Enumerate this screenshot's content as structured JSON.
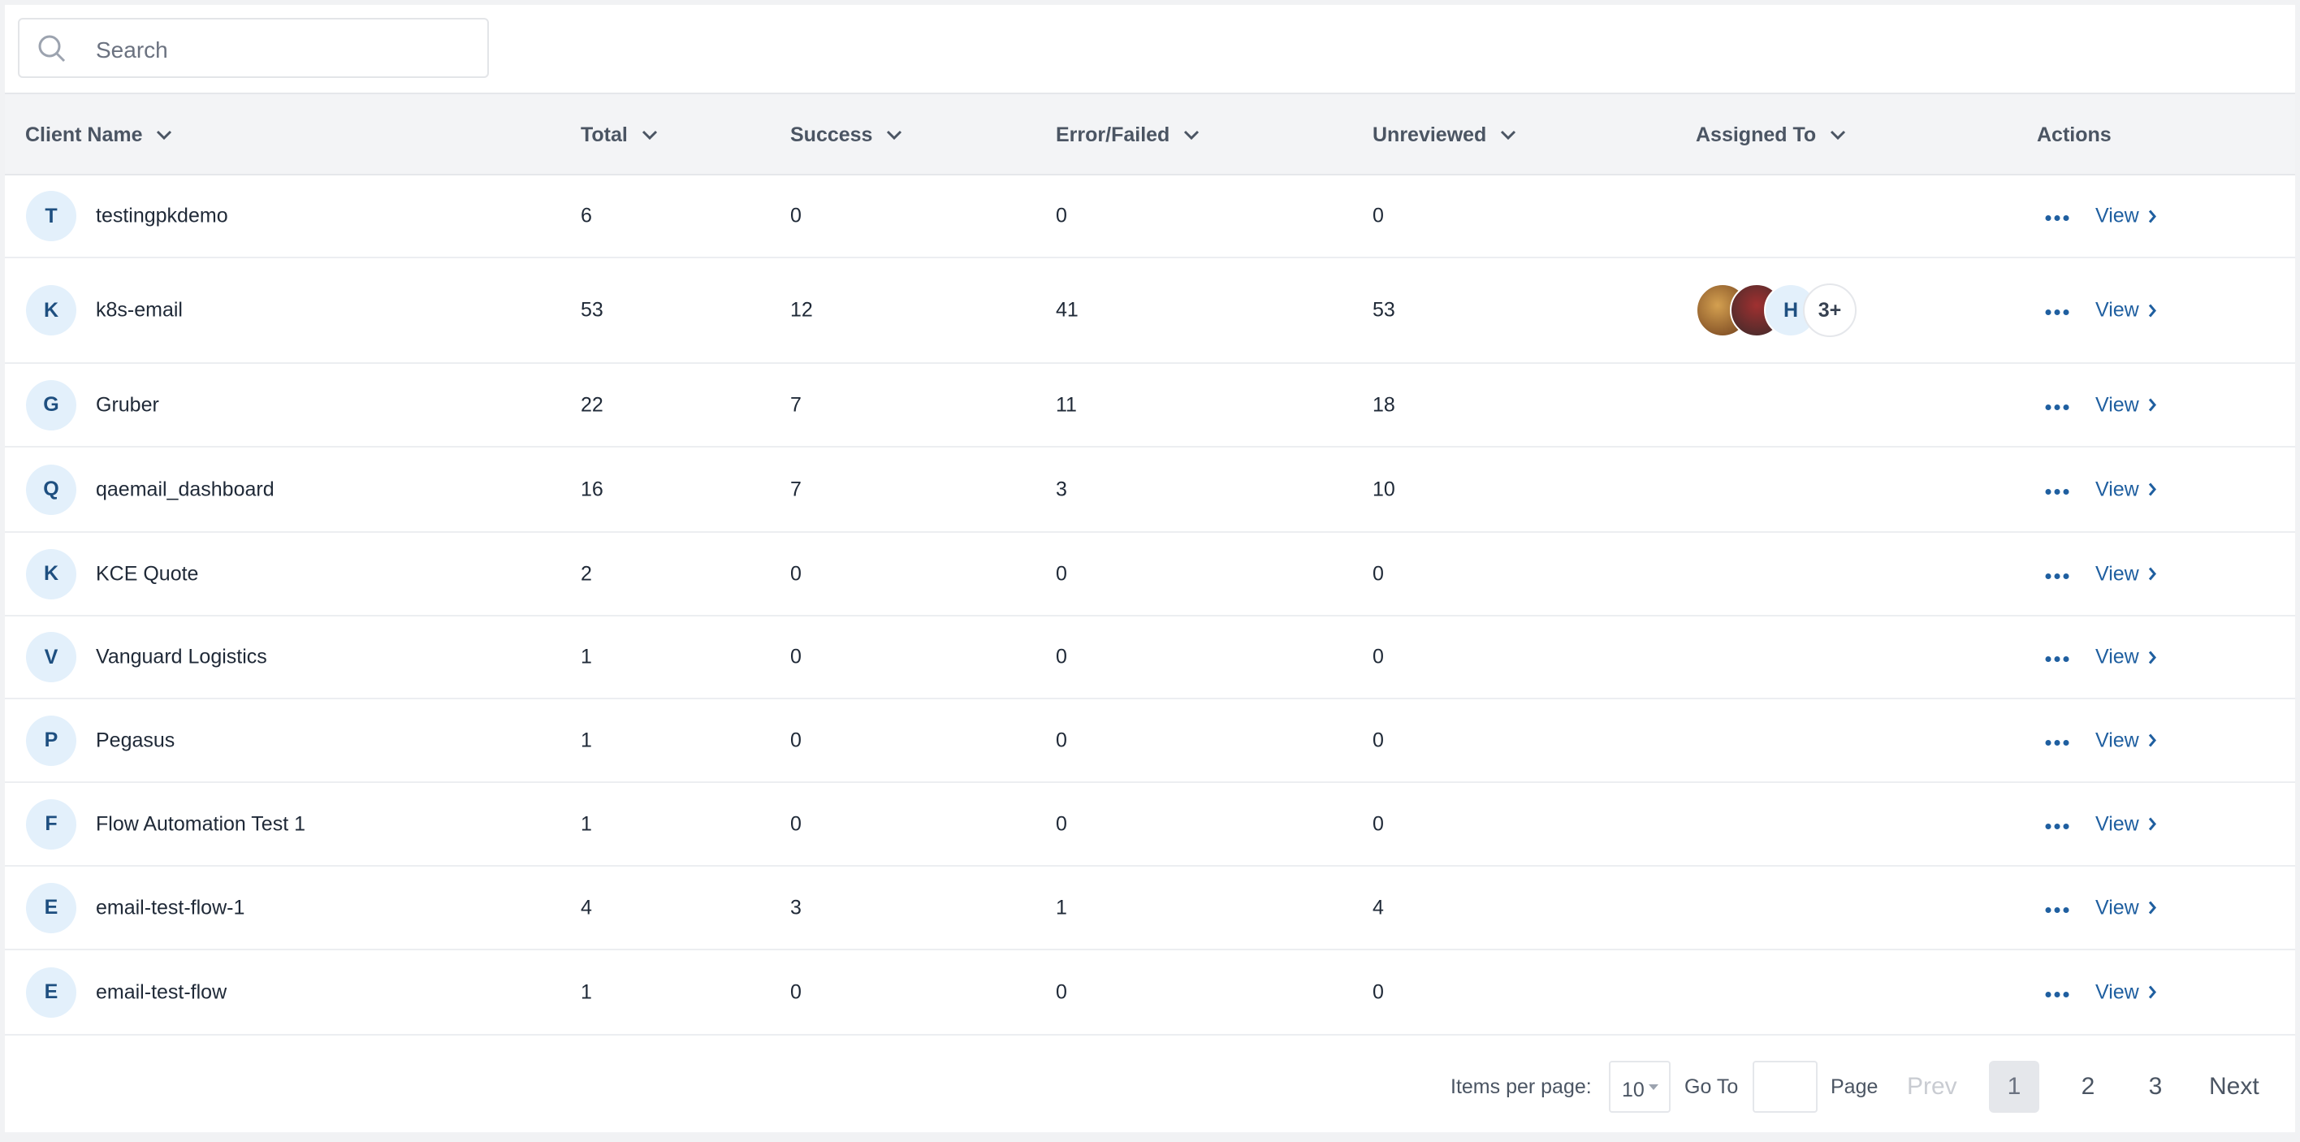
{
  "header": {
    "search_placeholder": "Search"
  },
  "table": {
    "columns": [
      "Client Name",
      "Total",
      "Success",
      "Error/Failed",
      "Unreviewed",
      "Assigned To",
      "Actions"
    ],
    "rows": [
      {
        "initial": "T",
        "name": "testingpkdemo",
        "total": 6,
        "success": 0,
        "error": 0,
        "unreviewed": 0,
        "action": "View"
      },
      {
        "initial": "K",
        "name": "k8s-email",
        "total": 53,
        "success": 12,
        "error": 41,
        "unreviewed": 53,
        "assigned": {
          "initial": "H",
          "more": "3+"
        },
        "action": "View"
      },
      {
        "initial": "G",
        "name": "Gruber",
        "total": 22,
        "success": 7,
        "error": 11,
        "unreviewed": 18,
        "action": "View"
      },
      {
        "initial": "Q",
        "name": "qaemail_dashboard",
        "total": 16,
        "success": 7,
        "error": 3,
        "unreviewed": 10,
        "action": "View"
      },
      {
        "initial": "K",
        "name": "KCE Quote",
        "total": 2,
        "success": 0,
        "error": 0,
        "unreviewed": 0,
        "action": "View"
      },
      {
        "initial": "V",
        "name": "Vanguard Logistics",
        "total": 1,
        "success": 0,
        "error": 0,
        "unreviewed": 0,
        "action": "View"
      },
      {
        "initial": "P",
        "name": "Pegasus",
        "total": 1,
        "success": 0,
        "error": 0,
        "unreviewed": 0,
        "action": "View"
      },
      {
        "initial": "F",
        "name": "Flow Automation Test 1",
        "total": 1,
        "success": 0,
        "error": 0,
        "unreviewed": 0,
        "action": "View"
      },
      {
        "initial": "E",
        "name": "email-test-flow-1",
        "total": 4,
        "success": 3,
        "error": 1,
        "unreviewed": 4,
        "action": "View"
      },
      {
        "initial": "E",
        "name": "email-test-flow",
        "total": 1,
        "success": 0,
        "error": 0,
        "unreviewed": 0,
        "action": "View"
      }
    ]
  },
  "pagination": {
    "items_label": "Items per page:",
    "items_value": "10",
    "goto_label": "Go To",
    "page_label": "Page",
    "prev": "Prev",
    "pages": [
      "1",
      "2",
      "3"
    ],
    "next": "Next"
  }
}
